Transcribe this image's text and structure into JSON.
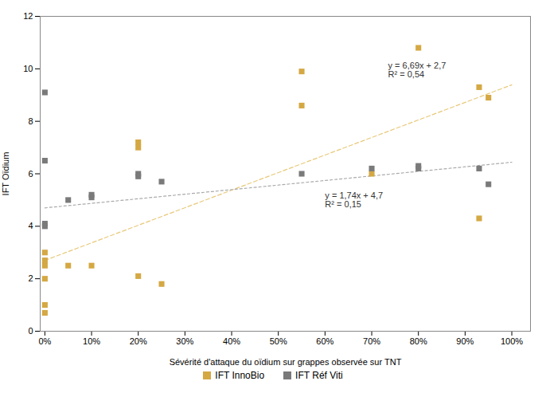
{
  "chart_data": {
    "type": "scatter",
    "xlabel": "Sévérité d'attaque du oïdium sur grappes observée sur TNT",
    "ylabel": "IFT Oïdium",
    "xlim": [
      -0.01,
      1.04
    ],
    "ylim": [
      0,
      12
    ],
    "xticks": [
      {
        "value": 0,
        "label": "0%"
      },
      {
        "value": 0.1,
        "label": "10%"
      },
      {
        "value": 0.2,
        "label": "20%"
      },
      {
        "value": 0.3,
        "label": "30%"
      },
      {
        "value": 0.4,
        "label": "40%"
      },
      {
        "value": 0.5,
        "label": "50%"
      },
      {
        "value": 0.6,
        "label": "60%"
      },
      {
        "value": 0.7,
        "label": "70%"
      },
      {
        "value": 0.8,
        "label": "80%"
      },
      {
        "value": 0.9,
        "label": "90%"
      },
      {
        "value": 1.0,
        "label": "100%"
      }
    ],
    "yticks": [
      0,
      2,
      4,
      6,
      8,
      10,
      12
    ],
    "grid": false,
    "legend": "bottom",
    "series": [
      {
        "name": "IFT InnoBio",
        "color": "#D4A843",
        "marker": "square",
        "x": [
          0,
          0,
          0,
          0,
          0,
          0,
          0.05,
          0.1,
          0.2,
          0.2,
          0.2,
          0.25,
          0.55,
          0.55,
          0.7,
          0.8,
          0.93,
          0.93,
          0.95
        ],
        "values": [
          0.7,
          1.0,
          2.0,
          2.5,
          2.7,
          3.0,
          2.5,
          2.5,
          2.1,
          7.2,
          7.0,
          1.8,
          8.6,
          9.9,
          6.0,
          10.8,
          9.3,
          4.3,
          8.9
        ]
      },
      {
        "name": "IFT Réf Viti",
        "color": "#7a7a7a",
        "marker": "square",
        "x": [
          0,
          0,
          0,
          0,
          0.05,
          0.1,
          0.1,
          0.2,
          0.2,
          0.25,
          0.55,
          0.7,
          0.8,
          0.8,
          0.93,
          0.95
        ],
        "values": [
          9.1,
          6.5,
          4.1,
          4.0,
          5.0,
          5.1,
          5.2,
          5.9,
          6.0,
          5.7,
          6.0,
          6.2,
          6.2,
          6.3,
          6.2,
          5.6
        ]
      }
    ],
    "trend_lines": [
      {
        "x": [
          0,
          1.0
        ],
        "values": [
          2.7,
          9.39
        ],
        "color": "#E8C97A",
        "line_style": "dashed"
      },
      {
        "x": [
          0,
          1.0
        ],
        "values": [
          4.7,
          6.44
        ],
        "color": "#AAAAAA",
        "line_style": "dotted"
      }
    ],
    "annotations": [
      {
        "text": "y = 6,69x + 2,7\nR² = 0,54",
        "x": 0.735,
        "y": 10.25,
        "color": "#333333"
      },
      {
        "text": "y = 1,74x + 4,7\nR² = 0,15",
        "x": 0.6,
        "y": 5.3,
        "color": "#333333"
      }
    ]
  }
}
